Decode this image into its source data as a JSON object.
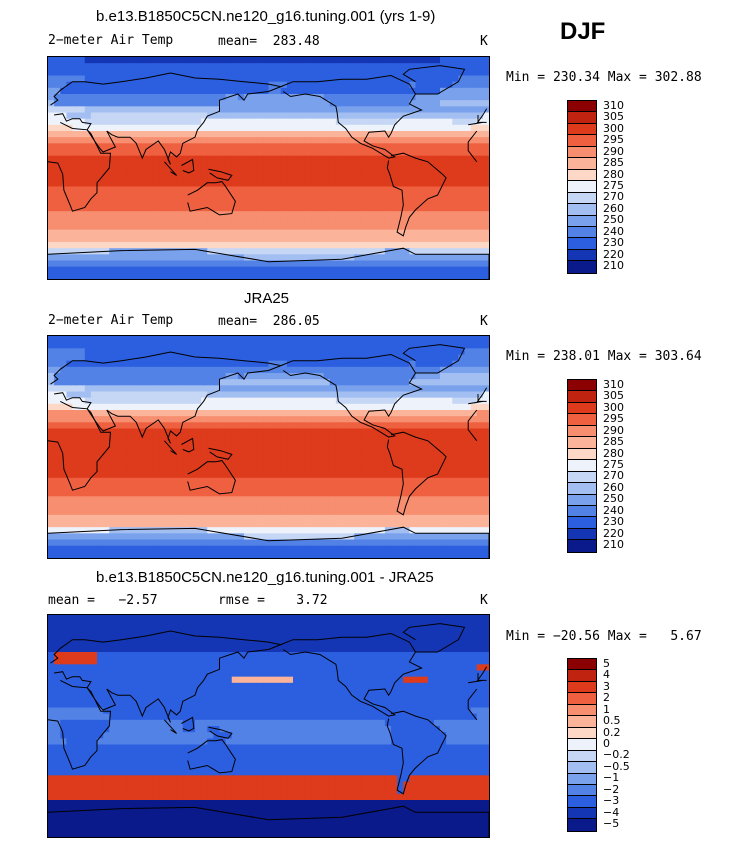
{
  "season": "DJF",
  "panels": [
    {
      "title": "b.e13.B1850C5CN.ne120_g16.tuning.001 (yrs 1-9)",
      "left_label": "2−meter Air Temp",
      "mean_label": "mean=  283.48",
      "units": "K",
      "minmax": "Min = 230.34 Max = 302.88",
      "field": "model"
    },
    {
      "title": "JRA25",
      "left_label": "2−meter Air Temp",
      "mean_label": "mean=  286.05",
      "units": "K",
      "minmax": "Min = 238.01 Max = 303.64",
      "field": "obs"
    },
    {
      "title": "b.e13.B1850C5CN.ne120_g16.tuning.001 - JRA25",
      "left_label": "mean =   −2.57",
      "mean_label": "rmse =    3.72",
      "units": "K",
      "minmax": "Min = −20.56 Max =   5.67",
      "field": "diff"
    }
  ],
  "chart_data": [
    {
      "type": "heatmap",
      "title": "b.e13.B1850C5CN.ne120_g16.tuning.001 (yrs 1-9)",
      "variable": "2-meter Air Temp",
      "units": "K",
      "mean": 283.48,
      "min": 230.34,
      "max": 302.88,
      "levels": [
        "310",
        "305",
        "300",
        "295",
        "290",
        "285",
        "280",
        "275",
        "270",
        "260",
        "250",
        "240",
        "230",
        "220",
        "210"
      ],
      "colors": [
        "#8b0000",
        "#c0230f",
        "#dd3b1c",
        "#ee6040",
        "#f68e6f",
        "#fbb49a",
        "#fdd8c6",
        "#eef2fb",
        "#c6d7f6",
        "#a3bff2",
        "#7aa2ec",
        "#5282e6",
        "#2c5fe0",
        "#1436b5",
        "#0a1a8a"
      ]
    },
    {
      "type": "heatmap",
      "title": "JRA25",
      "variable": "2-meter Air Temp",
      "units": "K",
      "mean": 286.05,
      "min": 238.01,
      "max": 303.64,
      "levels": [
        "310",
        "305",
        "300",
        "295",
        "290",
        "285",
        "280",
        "275",
        "270",
        "260",
        "250",
        "240",
        "230",
        "220",
        "210"
      ],
      "colors": [
        "#8b0000",
        "#c0230f",
        "#dd3b1c",
        "#ee6040",
        "#f68e6f",
        "#fbb49a",
        "#fdd8c6",
        "#eef2fb",
        "#c6d7f6",
        "#a3bff2",
        "#7aa2ec",
        "#5282e6",
        "#2c5fe0",
        "#1436b5",
        "#0a1a8a"
      ]
    },
    {
      "type": "heatmap",
      "title": "b.e13.B1850C5CN.ne120_g16.tuning.001 - JRA25",
      "units": "K",
      "mean": -2.57,
      "rmse": 3.72,
      "min": -20.56,
      "max": 5.67,
      "levels": [
        "5",
        "4",
        "3",
        "2",
        "1",
        "0.5",
        "0.2",
        "0",
        "−0.2",
        "−0.5",
        "−1",
        "−2",
        "−3",
        "−4",
        "−5"
      ],
      "colors": [
        "#8b0000",
        "#c0230f",
        "#dd3b1c",
        "#ee6040",
        "#f68e6f",
        "#fbb49a",
        "#fdd8c6",
        "#eef2fb",
        "#c6d7f6",
        "#a3bff2",
        "#7aa2ec",
        "#5282e6",
        "#2c5fe0",
        "#1436b5",
        "#0a1a8a"
      ]
    }
  ]
}
